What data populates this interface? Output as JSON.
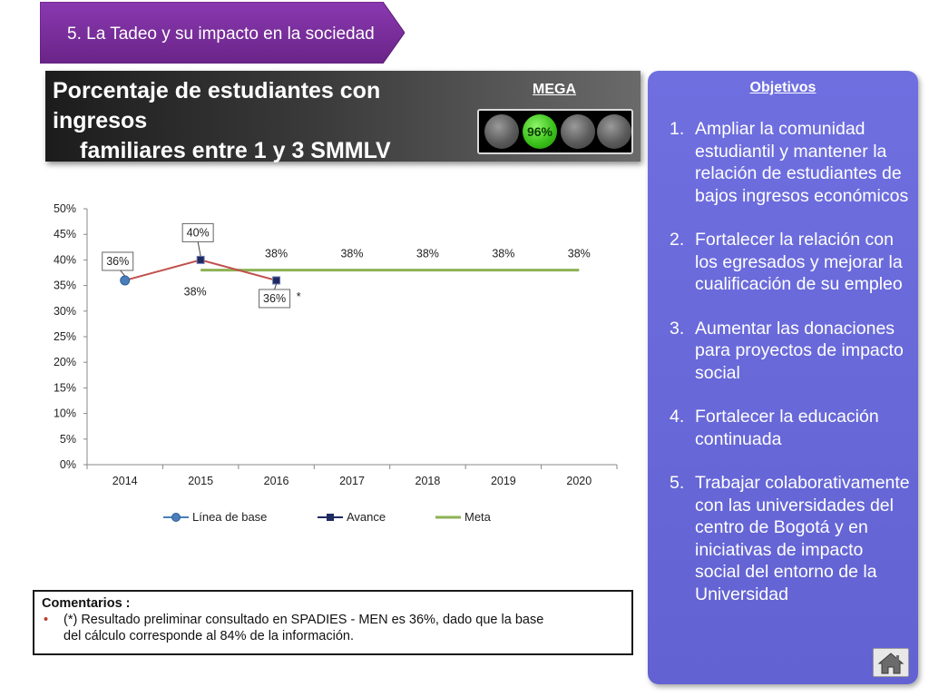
{
  "section": {
    "label": "5. La Tadeo y su impacto en la sociedad",
    "color": "#7a2d9c"
  },
  "header": {
    "title_line1": "Porcentaje de estudiantes con ingresos",
    "title_line2": "familiares entre 1 y 3 SMMLV",
    "mega_label": "MEGA",
    "indicator_value": "96%",
    "indicator_active_index": 1,
    "indicator_color": "#3cc21c"
  },
  "chart_data": {
    "type": "line",
    "categories": [
      "2014",
      "2015",
      "2016",
      "2017",
      "2018",
      "2019",
      "2020"
    ],
    "y_ticks": [
      "0%",
      "5%",
      "10%",
      "15%",
      "20%",
      "25%",
      "30%",
      "35%",
      "40%",
      "45%",
      "50%"
    ],
    "ylim": [
      0,
      50
    ],
    "series": [
      {
        "name": "Línea de base",
        "color": "#4a7ebb",
        "marker": "circle",
        "x": [
          "2014"
        ],
        "values": [
          36
        ],
        "labels": [
          "36%"
        ]
      },
      {
        "name": "Avance",
        "color": "#1f2a60",
        "marker": "square",
        "x": [
          "2014",
          "2015",
          "2016"
        ],
        "values": [
          36,
          40,
          36
        ],
        "labels": [
          "",
          "40%",
          "36%"
        ]
      },
      {
        "name": "Meta",
        "color": "#8db255",
        "marker": "none",
        "x": [
          "2015",
          "2016",
          "2017",
          "2018",
          "2019",
          "2020"
        ],
        "values": [
          38,
          38,
          38,
          38,
          38,
          38
        ],
        "labels": [
          "38%",
          "38%",
          "38%",
          "38%",
          "38%",
          "38%"
        ]
      }
    ],
    "annotation": "*",
    "legend_position": "bottom"
  },
  "comments": {
    "title": "Comentarios :",
    "bullet": "•",
    "line1": "(*) Resultado preliminar consultado en SPADIES - MEN es 36%, dado que la base",
    "line2": "del cálculo corresponde al 84% de la información."
  },
  "objectives": {
    "title": "Objetivos",
    "items": [
      {
        "num": "1.",
        "text": "Ampliar la comunidad estudiantil y mantener la relación de estudiantes de bajos ingresos económicos"
      },
      {
        "num": "2.",
        "text": "Fortalecer la relación con los egresados y mejorar la cualificación de su empleo"
      },
      {
        "num": "3.",
        "text": "Aumentar las donaciones para proyectos de impacto social"
      },
      {
        "num": "4.",
        "text": "Fortalecer la educación continuada"
      },
      {
        "num": "5.",
        "text": "Trabajar colaborativamente con las universidades del centro de Bogotá y en iniciativas de impacto social del entorno de la Universidad"
      }
    ],
    "home_icon": "home-icon"
  }
}
